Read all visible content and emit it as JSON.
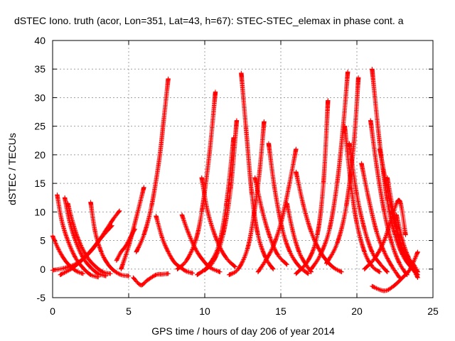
{
  "chart_data": {
    "type": "scatter",
    "title": "dSTEC Iono. truth (acor, Lon=351, Lat=43, h=67): STEC-STEC_elemax in phase cont. a",
    "xlabel": "GPS time / hours of day 206 of year 2014",
    "ylabel": "dSTEC  / TECUs",
    "xlim": [
      0,
      25
    ],
    "ylim": [
      -5,
      40
    ],
    "x_ticks": [
      0,
      5,
      10,
      15,
      20,
      25
    ],
    "y_ticks": [
      -5,
      0,
      5,
      10,
      15,
      20,
      25,
      30,
      35,
      40
    ],
    "grid": true,
    "marker": "+",
    "color": "#ff0000",
    "series": [
      {
        "x": [
          0.0,
          0.4,
          0.8,
          1.2,
          1.6,
          2.0
        ],
        "y": [
          5.8,
          3.4,
          1.6,
          0.4,
          -0.4,
          -0.8
        ]
      },
      {
        "x": [
          0.3,
          0.6,
          1.0,
          1.5,
          2.0,
          2.5,
          3.0
        ],
        "y": [
          13.0,
          8.5,
          5.0,
          2.0,
          0.2,
          -1.0,
          -1.4
        ]
      },
      {
        "x": [
          0.8,
          1.1,
          1.5,
          2.0,
          2.5,
          3.0,
          3.5
        ],
        "y": [
          12.5,
          8.5,
          5.0,
          2.0,
          0.3,
          -0.8,
          -1.2
        ]
      },
      {
        "x": [
          1.0,
          1.4,
          1.8,
          2.3,
          2.8,
          3.3,
          3.8
        ],
        "y": [
          11.5,
          7.5,
          4.5,
          2.0,
          0.5,
          -0.5,
          -0.8
        ]
      },
      {
        "x": [
          2.5,
          2.8,
          3.2,
          3.6,
          4.0,
          4.5,
          5.0
        ],
        "y": [
          11.7,
          6.5,
          3.0,
          1.0,
          -0.2,
          -1.0,
          -1.2
        ]
      },
      {
        "x": [
          0.0,
          0.8,
          1.6,
          2.4,
          3.0,
          3.6,
          4.0,
          4.4
        ],
        "y": [
          -0.2,
          0.2,
          1.0,
          2.8,
          4.8,
          7.2,
          8.8,
          10.2
        ]
      },
      {
        "x": [
          0.5,
          1.2,
          1.9,
          2.6,
          3.2,
          3.9
        ],
        "y": [
          -1.0,
          0.0,
          1.5,
          3.5,
          5.5,
          7.6
        ]
      },
      {
        "x": [
          4.2,
          4.5,
          4.8,
          5.1,
          5.4
        ],
        "y": [
          1.5,
          3.0,
          4.0,
          5.5,
          7.0
        ]
      },
      {
        "x": [
          4.5,
          5.0,
          5.5,
          6.0
        ],
        "y": [
          0.0,
          4.0,
          9.0,
          14.3
        ]
      },
      {
        "x": [
          5.3,
          5.8,
          6.2,
          6.8,
          7.2,
          7.6
        ],
        "y": [
          -1.5,
          -2.8,
          -2.0,
          -1.0,
          -0.9,
          -0.8
        ]
      },
      {
        "x": [
          5.5,
          6.0,
          6.5,
          7.0,
          7.3,
          7.6
        ],
        "y": [
          3.0,
          6.0,
          11.0,
          19.0,
          26.0,
          33.3
        ]
      },
      {
        "x": [
          6.8,
          7.2,
          7.6,
          8.0,
          8.4,
          8.8,
          9.2
        ],
        "y": [
          9.3,
          5.5,
          3.0,
          1.2,
          0.3,
          -0.4,
          -0.7
        ]
      },
      {
        "x": [
          8.5,
          8.9,
          9.4,
          9.9,
          10.4,
          11.0
        ],
        "y": [
          9.5,
          6.5,
          3.5,
          1.5,
          0.2,
          -0.5
        ]
      },
      {
        "x": [
          8.2,
          8.8,
          9.4,
          9.8,
          10.3,
          10.7
        ],
        "y": [
          0.0,
          1.5,
          5.0,
          10.0,
          20.0,
          31.0
        ]
      },
      {
        "x": [
          9.8,
          10.2,
          10.8,
          11.4,
          12.0
        ],
        "y": [
          16.0,
          10.0,
          5.0,
          2.0,
          0.4
        ]
      },
      {
        "x": [
          9.5,
          10.2,
          10.9,
          11.4,
          11.9
        ],
        "y": [
          -1.0,
          0.5,
          4.0,
          11.0,
          23.0
        ]
      },
      {
        "x": [
          10.0,
          10.6,
          11.2,
          11.7,
          12.1
        ],
        "y": [
          -0.2,
          1.5,
          6.0,
          14.0,
          26.0
        ]
      },
      {
        "x": [
          12.4,
          12.7,
          13.1,
          13.5,
          14.0,
          14.5
        ],
        "y": [
          34.3,
          25.0,
          13.0,
          6.0,
          2.0,
          0.0
        ]
      },
      {
        "x": [
          11.6,
          12.2,
          12.8,
          13.2,
          13.6,
          13.9
        ],
        "y": [
          -1.0,
          0.0,
          3.5,
          9.0,
          17.0,
          25.8
        ]
      },
      {
        "x": [
          13.3,
          13.8,
          14.3,
          14.8,
          15.4
        ],
        "y": [
          16.0,
          10.0,
          5.5,
          2.5,
          0.8
        ]
      },
      {
        "x": [
          13.5,
          14.0,
          14.5,
          15.0,
          15.5,
          16.0
        ],
        "y": [
          -0.5,
          1.5,
          4.0,
          8.0,
          14.0,
          21.0
        ]
      },
      {
        "x": [
          14.2,
          14.6,
          15.1,
          15.6,
          16.2,
          16.8
        ],
        "y": [
          22.0,
          14.0,
          7.0,
          3.0,
          0.5,
          -0.8
        ]
      },
      {
        "x": [
          15.4,
          15.8,
          16.2,
          16.6,
          17.0
        ],
        "y": [
          11.5,
          6.5,
          3.0,
          1.0,
          -0.5
        ]
      },
      {
        "x": [
          16.0,
          16.5,
          17.0,
          17.5,
          18.0,
          18.5,
          19.0
        ],
        "y": [
          17.0,
          11.0,
          6.5,
          3.5,
          1.5,
          0.2,
          -0.5
        ]
      },
      {
        "x": [
          16.0,
          16.8,
          17.4,
          17.8,
          18.1
        ],
        "y": [
          -0.8,
          1.5,
          6.0,
          15.0,
          29.5
        ]
      },
      {
        "x": [
          17.0,
          17.6,
          18.2,
          18.7,
          19.1,
          19.4
        ],
        "y": [
          0.0,
          2.5,
          7.0,
          15.0,
          25.0,
          34.5
        ]
      },
      {
        "x": [
          18.0,
          18.7,
          19.3,
          19.8,
          20.1
        ],
        "y": [
          1.0,
          4.5,
          11.0,
          22.0,
          33.5
        ]
      },
      {
        "x": [
          19.2,
          19.6,
          20.0,
          20.5,
          21.0,
          21.5
        ],
        "y": [
          25.0,
          15.0,
          8.0,
          3.0,
          0.5,
          -0.5
        ]
      },
      {
        "x": [
          19.5,
          20.0,
          20.5,
          21.0,
          21.5,
          22.0
        ],
        "y": [
          22.0,
          13.0,
          7.0,
          3.0,
          1.0,
          -0.5
        ]
      },
      {
        "x": [
          20.3,
          20.8,
          21.3,
          21.8,
          22.3,
          22.8
        ],
        "y": [
          18.5,
          12.0,
          6.5,
          3.0,
          0.5,
          -1.5
        ]
      },
      {
        "x": [
          20.9,
          21.3,
          21.8,
          22.3,
          22.8,
          23.3
        ],
        "y": [
          26.0,
          18.0,
          10.0,
          4.5,
          1.0,
          -1.0
        ]
      },
      {
        "x": [
          21.0,
          21.5,
          22.0,
          22.5,
          23.0,
          23.5,
          24.0
        ],
        "y": [
          35.0,
          22.0,
          12.0,
          6.0,
          2.5,
          0.5,
          -1.0
        ]
      },
      {
        "x": [
          21.5,
          22.0,
          22.5,
          23.0,
          23.5,
          24.0
        ],
        "y": [
          21.0,
          14.0,
          8.0,
          3.5,
          1.0,
          -0.5
        ]
      },
      {
        "x": [
          22.0,
          22.4,
          22.8,
          23.2,
          23.6,
          24.0
        ],
        "y": [
          16.0,
          10.0,
          5.0,
          2.0,
          0.5,
          -1.5
        ]
      },
      {
        "x": [
          21.0,
          21.8,
          22.4,
          23.0,
          23.5,
          24.0
        ],
        "y": [
          -3.0,
          -3.8,
          -3.0,
          -1.5,
          0.0,
          3.0
        ]
      },
      {
        "x": [
          20.5,
          21.2,
          21.8,
          22.3,
          22.8,
          23.2
        ],
        "y": [
          0.0,
          2.0,
          5.0,
          9.0,
          12.0,
          6.0
        ]
      },
      {
        "x": [
          22.6,
          23.0,
          23.4,
          23.8,
          24.0
        ],
        "y": [
          9.5,
          5.0,
          2.0,
          0.5,
          -0.5
        ]
      }
    ]
  }
}
